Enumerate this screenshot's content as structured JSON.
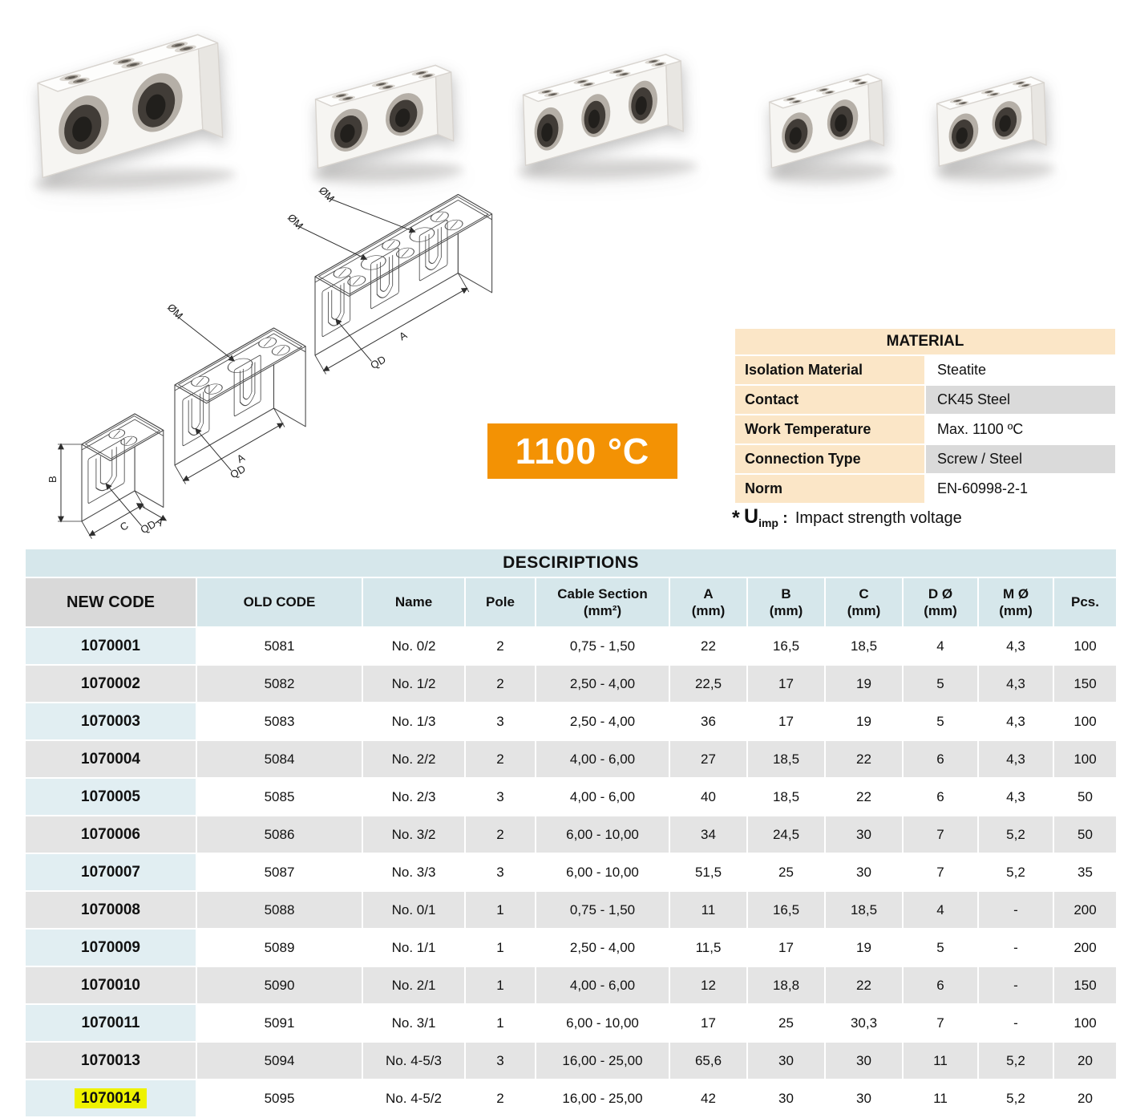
{
  "badge": {
    "label": "1100 °C",
    "color": "#f39204"
  },
  "material": {
    "title": "MATERIAL",
    "rows": [
      {
        "label": "Isolation Material",
        "value": "Steatite"
      },
      {
        "label": "Contact",
        "value": "CK45 Steel"
      },
      {
        "label": "Work Temperature",
        "value": "Max. 1100 ºC"
      },
      {
        "label": "Connection Type",
        "value": "Screw / Steel"
      },
      {
        "label": "Norm",
        "value": "EN-60998-2-1"
      }
    ]
  },
  "note": {
    "star": "*",
    "symbol": "U",
    "subscript": "imp",
    "colon": " :",
    "text": "Impact strength voltage"
  },
  "drawings": {
    "labels": {
      "diameter_m": "ØM",
      "qd": "QD",
      "a": "A",
      "b": "B",
      "c": "C"
    }
  },
  "table": {
    "title": "DESCIRIPTIONS",
    "columns": [
      {
        "label": "NEW CODE",
        "sub": ""
      },
      {
        "label": "OLD CODE",
        "sub": ""
      },
      {
        "label": "Name",
        "sub": ""
      },
      {
        "label": "Pole",
        "sub": ""
      },
      {
        "label": "Cable Section",
        "sub": "(mm²)"
      },
      {
        "label": "A",
        "sub": "(mm)"
      },
      {
        "label": "B",
        "sub": "(mm)"
      },
      {
        "label": "C",
        "sub": "(mm)"
      },
      {
        "label": "D Ø",
        "sub": "(mm)"
      },
      {
        "label": "M Ø",
        "sub": "(mm)"
      },
      {
        "label": "Pcs.",
        "sub": ""
      }
    ],
    "rows": [
      {
        "new_code": "1070001",
        "old_code": "5081",
        "name": "No. 0/2",
        "pole": "2",
        "cable_section": "0,75 - 1,50",
        "a": "22",
        "b": "16,5",
        "c": "18,5",
        "d": "4",
        "m": "4,3",
        "pcs": "100"
      },
      {
        "new_code": "1070002",
        "old_code": "5082",
        "name": "No. 1/2",
        "pole": "2",
        "cable_section": "2,50 - 4,00",
        "a": "22,5",
        "b": "17",
        "c": "19",
        "d": "5",
        "m": "4,3",
        "pcs": "150"
      },
      {
        "new_code": "1070003",
        "old_code": "5083",
        "name": "No. 1/3",
        "pole": "3",
        "cable_section": "2,50 - 4,00",
        "a": "36",
        "b": "17",
        "c": "19",
        "d": "5",
        "m": "4,3",
        "pcs": "100"
      },
      {
        "new_code": "1070004",
        "old_code": "5084",
        "name": "No. 2/2",
        "pole": "2",
        "cable_section": "4,00 - 6,00",
        "a": "27",
        "b": "18,5",
        "c": "22",
        "d": "6",
        "m": "4,3",
        "pcs": "100"
      },
      {
        "new_code": "1070005",
        "old_code": "5085",
        "name": "No. 2/3",
        "pole": "3",
        "cable_section": "4,00 - 6,00",
        "a": "40",
        "b": "18,5",
        "c": "22",
        "d": "6",
        "m": "4,3",
        "pcs": "50"
      },
      {
        "new_code": "1070006",
        "old_code": "5086",
        "name": "No. 3/2",
        "pole": "2",
        "cable_section": "6,00 - 10,00",
        "a": "34",
        "b": "24,5",
        "c": "30",
        "d": "7",
        "m": "5,2",
        "pcs": "50"
      },
      {
        "new_code": "1070007",
        "old_code": "5087",
        "name": "No. 3/3",
        "pole": "3",
        "cable_section": "6,00 - 10,00",
        "a": "51,5",
        "b": "25",
        "c": "30",
        "d": "7",
        "m": "5,2",
        "pcs": "35"
      },
      {
        "new_code": "1070008",
        "old_code": "5088",
        "name": "No. 0/1",
        "pole": "1",
        "cable_section": "0,75 - 1,50",
        "a": "11",
        "b": "16,5",
        "c": "18,5",
        "d": "4",
        "m": "-",
        "pcs": "200"
      },
      {
        "new_code": "1070009",
        "old_code": "5089",
        "name": "No. 1/1",
        "pole": "1",
        "cable_section": "2,50 - 4,00",
        "a": "11,5",
        "b": "17",
        "c": "19",
        "d": "5",
        "m": "-",
        "pcs": "200"
      },
      {
        "new_code": "1070010",
        "old_code": "5090",
        "name": "No. 2/1",
        "pole": "1",
        "cable_section": "4,00 - 6,00",
        "a": "12",
        "b": "18,8",
        "c": "22",
        "d": "6",
        "m": "-",
        "pcs": "150"
      },
      {
        "new_code": "1070011",
        "old_code": "5091",
        "name": "No. 3/1",
        "pole": "1",
        "cable_section": "6,00 - 10,00",
        "a": "17",
        "b": "25",
        "c": "30,3",
        "d": "7",
        "m": "-",
        "pcs": "100"
      },
      {
        "new_code": "1070013",
        "old_code": "5094",
        "name": "No. 4-5/3",
        "pole": "3",
        "cable_section": "16,00 - 25,00",
        "a": "65,6",
        "b": "30",
        "c": "30",
        "d": "11",
        "m": "5,2",
        "pcs": "20"
      },
      {
        "new_code": "1070014",
        "old_code": "5095",
        "name": "No. 4-5/2",
        "pole": "2",
        "cable_section": "16,00 - 25,00",
        "a": "42",
        "b": "30",
        "c": "30",
        "d": "11",
        "m": "5,2",
        "pcs": "20",
        "highlight": true
      }
    ]
  }
}
